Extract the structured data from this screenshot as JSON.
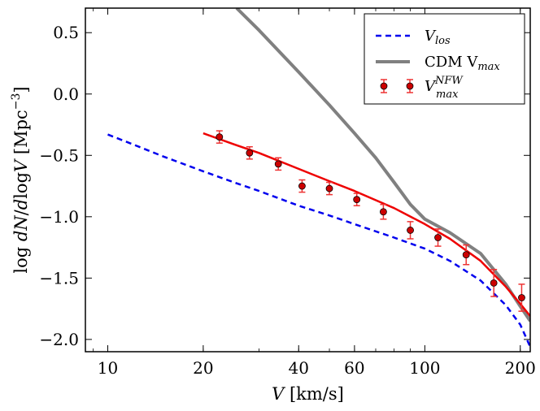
{
  "chart_data": {
    "type": "line",
    "xlabel": "V [km/s]",
    "ylabel": "log dN/dlogV [Mpc^-3]",
    "x_scale": "log",
    "xlim": [
      8.5,
      215
    ],
    "ylim": [
      -2.1,
      0.7
    ],
    "x_ticks": [
      10,
      20,
      40,
      60,
      100,
      200
    ],
    "x_tick_labels": [
      "10",
      "20",
      "40",
      "60",
      "100",
      "200"
    ],
    "y_ticks": [
      0.5,
      0.0,
      -0.5,
      -1.0,
      -1.5,
      -2.0
    ],
    "y_tick_labels": [
      "0.5",
      "0.0",
      "−0.5",
      "−1.0",
      "−1.5",
      "−2.0"
    ],
    "legend_position": "top-right",
    "legend": {
      "vlos_main": "V",
      "vlos_sub": "los",
      "cdm_main": "CDM V",
      "cdm_sub": "max",
      "nfw_main": "V",
      "nfw_sub": "max",
      "nfw_sup": "NFW"
    },
    "series": [
      {
        "key": "vlos",
        "style": "dashed",
        "color": "#0000ee",
        "x": [
          10,
          12,
          15,
          20,
          25,
          30,
          40,
          50,
          60,
          80,
          100,
          120,
          150,
          180,
          200,
          215
        ],
        "y": [
          -0.33,
          -0.41,
          -0.51,
          -0.63,
          -0.72,
          -0.79,
          -0.91,
          -0.99,
          -1.06,
          -1.17,
          -1.26,
          -1.36,
          -1.52,
          -1.72,
          -1.88,
          -2.06
        ]
      },
      {
        "key": "cdm",
        "style": "solid",
        "color": "#808080",
        "x": [
          25.5,
          30,
          40,
          50,
          60,
          70,
          80,
          90,
          100,
          120,
          150,
          180,
          200,
          215
        ],
        "y": [
          0.7,
          0.52,
          0.18,
          -0.09,
          -0.32,
          -0.52,
          -0.72,
          -0.9,
          -1.02,
          -1.13,
          -1.3,
          -1.55,
          -1.73,
          -1.85
        ]
      },
      {
        "key": "fit",
        "style": "solid",
        "color": "#ee0000",
        "x": [
          20,
          25,
          30,
          40,
          50,
          60,
          80,
          100,
          120,
          150,
          180,
          200,
          215
        ],
        "y": [
          -0.32,
          -0.41,
          -0.48,
          -0.61,
          -0.71,
          -0.79,
          -0.93,
          -1.06,
          -1.18,
          -1.36,
          -1.57,
          -1.71,
          -1.81
        ]
      },
      {
        "key": "nfw",
        "style": "points",
        "color": "#cc0000",
        "x": [
          22.5,
          28.0,
          34.5,
          41.0,
          50.0,
          61.0,
          74.0,
          90.0,
          110.0,
          135.0,
          165.0,
          202.0
        ],
        "y": [
          -0.35,
          -0.48,
          -0.57,
          -0.75,
          -0.77,
          -0.86,
          -0.96,
          -1.11,
          -1.17,
          -1.31,
          -1.54,
          -1.66
        ],
        "err": [
          0.05,
          0.05,
          0.05,
          0.05,
          0.05,
          0.05,
          0.06,
          0.07,
          0.07,
          0.08,
          0.11,
          0.11
        ]
      }
    ]
  }
}
